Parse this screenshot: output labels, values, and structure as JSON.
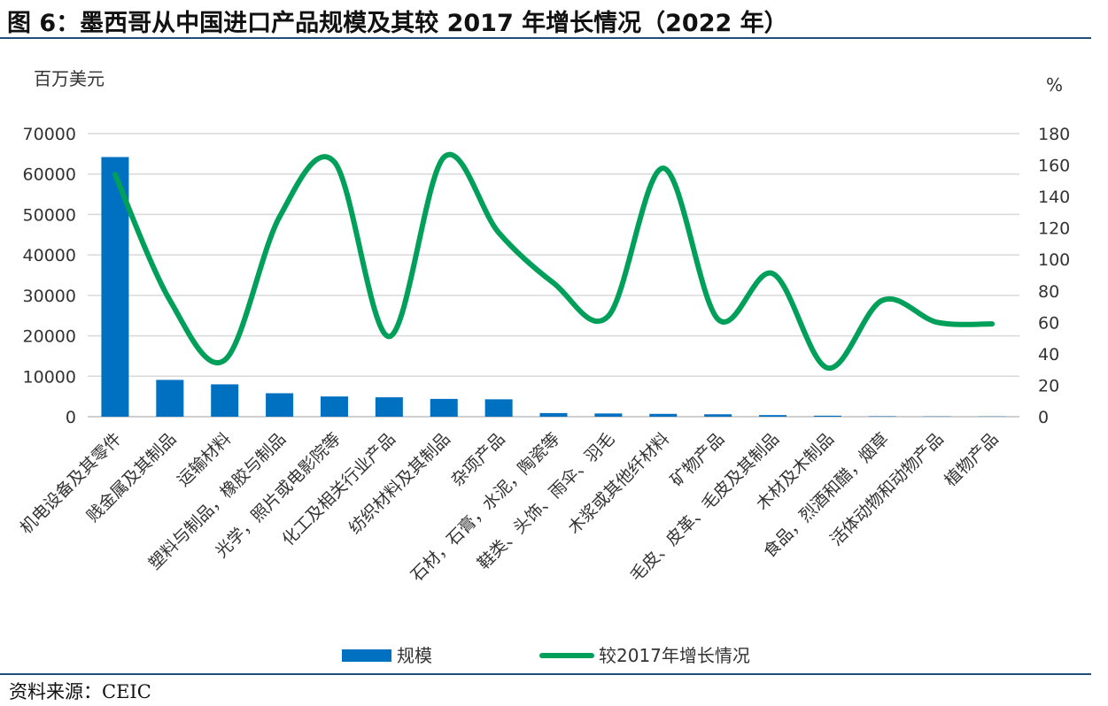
{
  "figure": {
    "title": "图 6：墨西哥从中国进口产品规模及其较 2017 年增长情况（2022 年）",
    "source": "资料来源：CEIC"
  },
  "chart_data": {
    "type": "bar+line",
    "categories": [
      "机电设备及其零件",
      "贱金属及其制品",
      "运输材料",
      "塑料与制品，橡胶与制品",
      "光学，照片或电影院等",
      "化工及相关行业产品",
      "纺织材料及其制品",
      "杂项产品",
      "石材，石膏，水泥，陶瓷等",
      "鞋类、头饰、雨伞、羽毛",
      "木浆或其他纤材料",
      "矿物产品",
      "毛皮、皮革、毛皮及其制品",
      "木材及木制品",
      "食品，烈酒和醋，烟草",
      "活体动物和动物产品",
      "植物产品"
    ],
    "series": [
      {
        "name": "规模",
        "type": "bar",
        "axis": "left",
        "color": "#0070c0",
        "values": [
          64200,
          9100,
          8000,
          5800,
          5000,
          4800,
          4400,
          4300,
          900,
          800,
          700,
          600,
          400,
          250,
          100,
          60,
          50
        ]
      },
      {
        "name": "较2017年增长情况",
        "type": "line",
        "axis": "right",
        "color": "#00a05a",
        "values": [
          154,
          74,
          36,
          127,
          162,
          51,
          165,
          117,
          85,
          64,
          158,
          62,
          91,
          31,
          74,
          60,
          59
        ]
      }
    ],
    "y_left": {
      "unit": "百万美元",
      "min": 0,
      "max": 70000,
      "ticks": [
        0,
        10000,
        20000,
        30000,
        40000,
        50000,
        60000,
        70000
      ]
    },
    "y_right": {
      "unit": "%",
      "min": 0,
      "max": 180,
      "ticks": [
        0,
        20,
        40,
        60,
        80,
        100,
        120,
        140,
        160,
        180
      ]
    },
    "grid": true,
    "legend": "bottom"
  }
}
